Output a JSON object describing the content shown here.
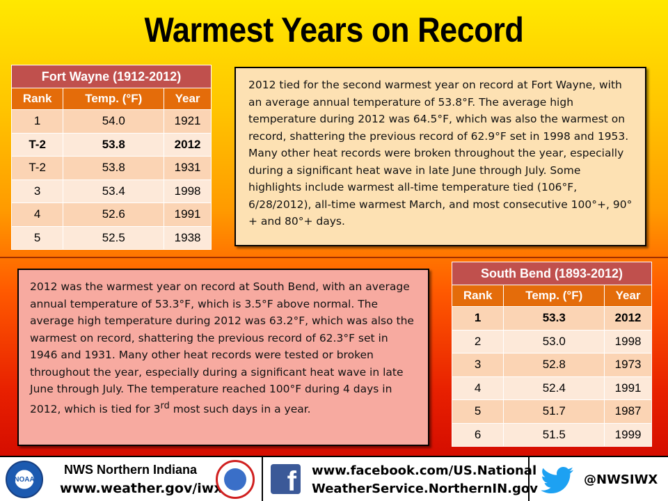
{
  "title": "Warmest Years on Record",
  "fort_wayne": {
    "header": "Fort Wayne (1912-2012)",
    "columns": [
      "Rank",
      "Temp. (°F)",
      "Year"
    ],
    "rows": [
      {
        "rank": "1",
        "temp": "54.0",
        "year": "1921",
        "bold": false
      },
      {
        "rank": "T-2",
        "temp": "53.8",
        "year": "2012",
        "bold": true
      },
      {
        "rank": "T-2",
        "temp": "53.8",
        "year": "1931",
        "bold": false
      },
      {
        "rank": "3",
        "temp": "53.4",
        "year": "1998",
        "bold": false
      },
      {
        "rank": "4",
        "temp": "52.6",
        "year": "1991",
        "bold": false
      },
      {
        "rank": "5",
        "temp": "52.5",
        "year": "1938",
        "bold": false
      }
    ]
  },
  "south_bend": {
    "header": "South Bend (1893-2012)",
    "columns": [
      "Rank",
      "Temp. (°F)",
      "Year"
    ],
    "rows": [
      {
        "rank": "1",
        "temp": "53.3",
        "year": "2012",
        "bold": true
      },
      {
        "rank": "2",
        "temp": "53.0",
        "year": "1998",
        "bold": false
      },
      {
        "rank": "3",
        "temp": "52.8",
        "year": "1973",
        "bold": false
      },
      {
        "rank": "4",
        "temp": "52.4",
        "year": "1991",
        "bold": false
      },
      {
        "rank": "5",
        "temp": "51.7",
        "year": "1987",
        "bold": false
      },
      {
        "rank": "6",
        "temp": "51.5",
        "year": "1999",
        "bold": false
      }
    ]
  },
  "fort_wayne_text": "2012 tied for the second warmest year on record at Fort Wayne, with an average annual temperature of 53.8°F. The average high temperature during 2012 was 64.5°F, which was also the warmest on record, shattering the previous record of 62.9°F set in 1998 and 1953. Many other heat records were broken throughout the year, especially during a significant heat wave in late June through July. Some highlights include warmest all-time temperature tied (106°F, 6/28/2012), all-time warmest March, and most consecutive 100°+, 90°+ and 80°+ days.",
  "south_bend_text": {
    "main": "2012 was the warmest year on record at South Bend, with an average annual temperature of 53.3°F, which is 3.5°F above normal. The average high temperature during 2012 was 63.2°F, which was also the warmest on record, shattering the previous record of 62.3°F set in 1946 and 1931. Many other heat records were tested or broken throughout the year, especially during a significant heat wave in late June through July. The temperature reached 100°F during 4 days in 2012, which is tied for 3",
    "sup": "rd",
    "end": " most such days in a year."
  },
  "footer": {
    "org_name": "NWS  Northern Indiana",
    "org_url": "www.weather.gov/iwx",
    "noaa_logo": "NOAA",
    "facebook_icon": "f",
    "facebook_line1": "www.facebook.com/US.National",
    "facebook_line2": "WeatherService.NorthernIN.gov",
    "twitter_handle": "@NWSIWX"
  },
  "colors": {
    "table_header": "#c0504d",
    "table_columns": "#e46c0a",
    "row_odd": "#fbd4b4",
    "row_even": "#fde9d9"
  }
}
